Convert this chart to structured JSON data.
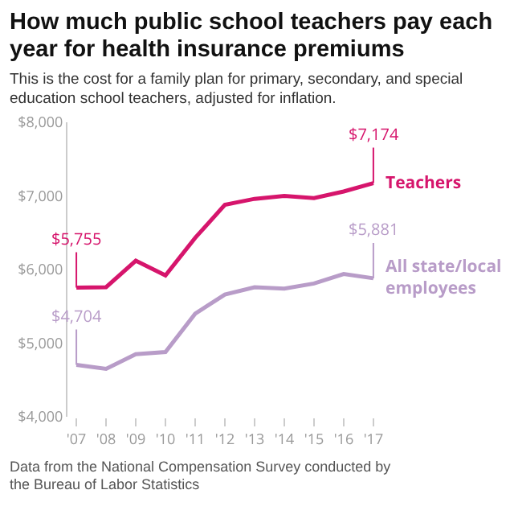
{
  "chart_data": {
    "type": "line",
    "title": "How much public school teachers pay each year for health insurance premiums",
    "subtitle": "This is the cost for a family plan for primary, secondary, and special education school teachers, adjusted for inflation.",
    "categories": [
      "'07",
      "'08",
      "'09",
      "'10",
      "'11",
      "'12",
      "'13",
      "'14",
      "'15",
      "'16",
      "'17"
    ],
    "series": [
      {
        "name": "Teachers",
        "color": "#d6156c",
        "values": [
          5755,
          5760,
          6120,
          5920,
          6430,
          6880,
          6960,
          7000,
          6970,
          7060,
          7174
        ],
        "value_labels": [
          "$5,755",
          null,
          null,
          null,
          null,
          null,
          null,
          null,
          null,
          null,
          "$7,174"
        ]
      },
      {
        "name": "All state/local employees",
        "color": "#b89cc8",
        "values": [
          4704,
          4650,
          4850,
          4880,
          5400,
          5660,
          5760,
          5740,
          5810,
          5940,
          5881
        ],
        "value_labels": [
          "$4,704",
          null,
          null,
          null,
          null,
          null,
          null,
          null,
          null,
          null,
          "$5,881"
        ]
      }
    ],
    "ylim": [
      4000,
      8000
    ],
    "yticks": [
      {
        "value": 4000,
        "label": "$4,000"
      },
      {
        "value": 5000,
        "label": "$5,000"
      },
      {
        "value": 6000,
        "label": "$6,000"
      },
      {
        "value": 7000,
        "label": "$7,000"
      },
      {
        "value": 8000,
        "label": "$8,000"
      }
    ],
    "grid": false,
    "legend": false,
    "marker": "none",
    "line_style": "solid",
    "annotations": [
      "Data from the National Compensation Survey conducted by the Bureau of Labor Statistics"
    ]
  }
}
